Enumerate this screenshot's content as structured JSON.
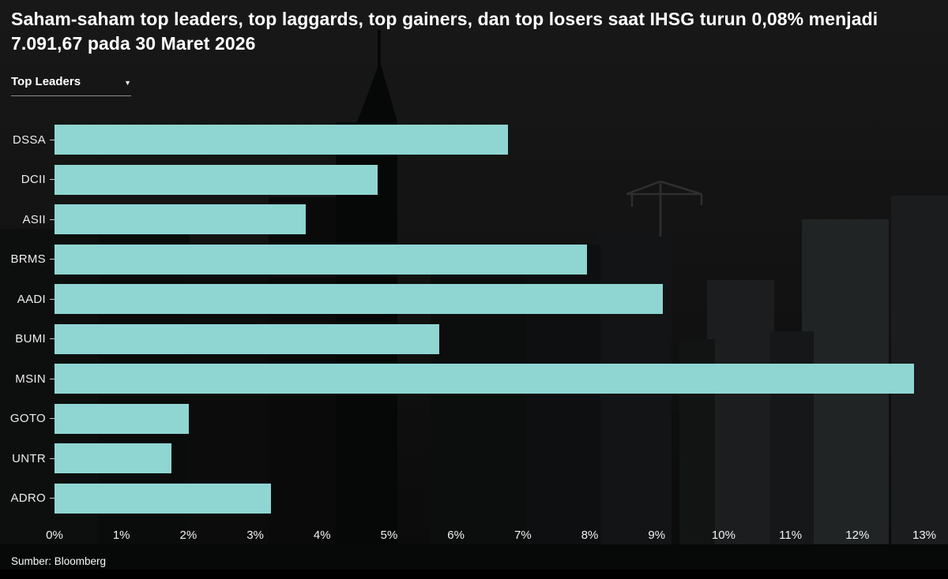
{
  "header": {
    "title": "Saham-saham top leaders, top laggards, top gainers, dan top losers saat IHSG turun 0,08% menjadi 7.091,67 pada 30 Maret 2026"
  },
  "dropdown": {
    "selected": "Top Leaders",
    "caret_icon": "▼"
  },
  "chart_data": {
    "type": "bar",
    "orientation": "horizontal",
    "title": "Top Leaders",
    "categories": [
      "DSSA",
      "DCII",
      "ASII",
      "BRMS",
      "AADI",
      "BUMI",
      "MSIN",
      "GOTO",
      "UNTR",
      "ADRO"
    ],
    "values": [
      6.6,
      4.7,
      3.65,
      7.75,
      8.85,
      5.6,
      12.5,
      1.95,
      1.7,
      3.15
    ],
    "unit": "%",
    "xlim": [
      0,
      13
    ],
    "x_ticks": [
      "0%",
      "1%",
      "2%",
      "3%",
      "4%",
      "5%",
      "6%",
      "7%",
      "8%",
      "9%",
      "10%",
      "11%",
      "12%",
      "13%"
    ],
    "grid": false,
    "legend": "none",
    "bar_color": "#8fd6d3"
  },
  "footer": {
    "source": "Sumber: Bloomberg"
  },
  "colors": {
    "background": "#101112",
    "bar": "#8fd6d3",
    "text": "#ffffff",
    "axis_text": "#ededed"
  }
}
